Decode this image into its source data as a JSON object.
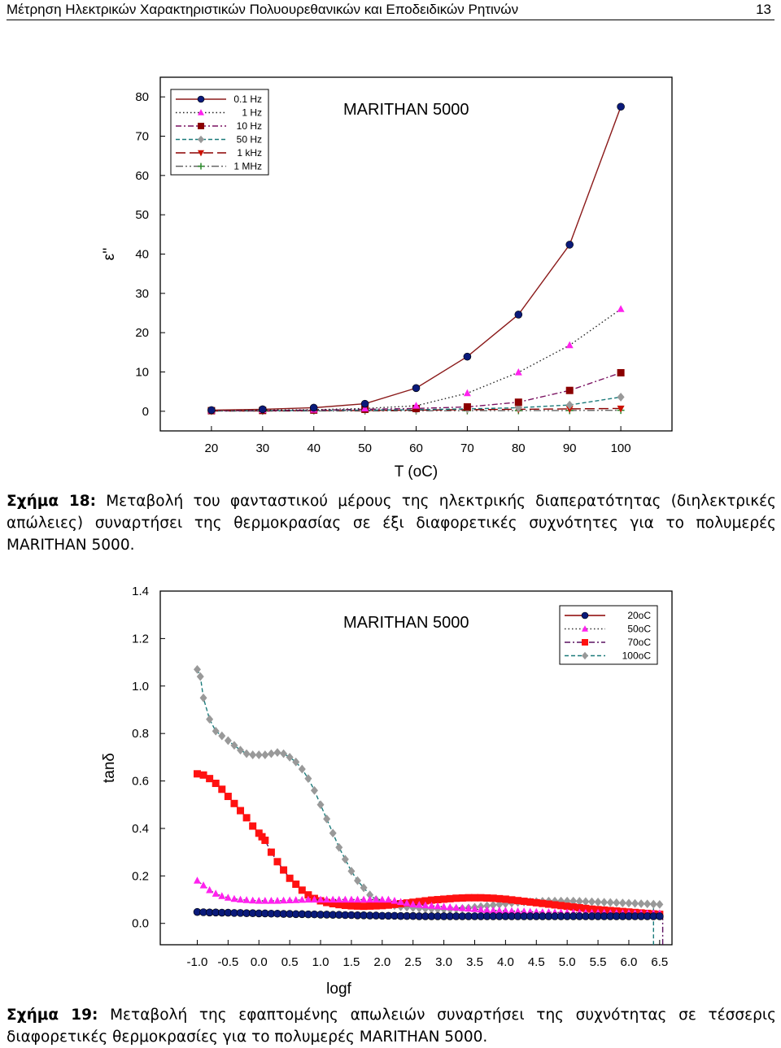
{
  "header": {
    "title": "Μέτρηση Ηλεκτρικών Χαρακτηριστικών Πολυουρεθανικών και Εποδειδικών Ρητινών",
    "page_number": "13"
  },
  "figure18": {
    "caption_label": "Σχήμα 18:",
    "caption_text": " Μεταβολή του φανταστικού μέρους της ηλεκτρικής διαπερατότητας (διηλεκτρικές απώλειες) συναρτήσει της θερμοκρασίας σε έξι διαφορετικές συχνότητες για το πολυμερές MARITHAN 5000."
  },
  "figure19": {
    "caption_label": "Σχήμα 19:",
    "caption_text": " Μεταβολή της εφαπτομένης απωλειών συναρτήσει της συχνότητας σε τέσσερις διαφορετικές θερμοκρασίες για το πολυμερές MARITHAN 5000."
  },
  "chart_data": [
    {
      "type": "line",
      "title": "MARITHAN 5000",
      "xlabel": "T (oC)",
      "ylabel": "ε''",
      "xlim": [
        10,
        110
      ],
      "ylim": [
        -5,
        85
      ],
      "xticks": [
        20,
        30,
        40,
        50,
        60,
        70,
        80,
        90,
        100
      ],
      "yticks": [
        0,
        10,
        20,
        30,
        40,
        50,
        60,
        70,
        80
      ],
      "legend": "top-left",
      "x": [
        20,
        30,
        40,
        50,
        60,
        70,
        80,
        90,
        100
      ],
      "series": [
        {
          "name": "0.1 Hz",
          "color": "#8b1a1a",
          "marker_color": "#0a1a7a",
          "marker": "circle",
          "dash": "solid",
          "values": [
            0.3,
            0.5,
            0.9,
            1.9,
            5.9,
            13.9,
            24.6,
            42.4,
            77.5
          ]
        },
        {
          "name": "1 Hz",
          "color": "#222222",
          "marker_color": "#ff22ee",
          "marker": "triangle",
          "dash": "dot",
          "values": [
            0.2,
            0.3,
            0.4,
            0.7,
            1.4,
            4.6,
            9.9,
            16.8,
            26.0
          ]
        },
        {
          "name": "10 Hz",
          "color": "#7a1060",
          "marker_color": "#8b0000",
          "marker": "square",
          "dash": "dashdot",
          "values": [
            0.15,
            0.2,
            0.3,
            0.5,
            0.7,
            1.1,
            2.3,
            5.3,
            9.8
          ]
        },
        {
          "name": "50 Hz",
          "color": "#1a7a7a",
          "marker_color": "#999999",
          "marker": "diamond",
          "dash": "dash",
          "values": [
            0.1,
            0.15,
            0.2,
            0.3,
            0.4,
            0.6,
            0.9,
            1.6,
            3.6
          ]
        },
        {
          "name": "1 kHz",
          "color": "#8b0000",
          "marker_color": "#cc1100",
          "marker": "invtriangle",
          "dash": "longdash",
          "values": [
            0.1,
            0.1,
            0.15,
            0.2,
            0.3,
            0.4,
            0.5,
            0.6,
            0.7
          ]
        },
        {
          "name": "1 MHz",
          "color": "#666666",
          "marker_color": "#2a8a2a",
          "marker": "plus",
          "dash": "dashdotdot",
          "values": [
            0.05,
            0.05,
            0.08,
            0.1,
            0.12,
            0.15,
            0.18,
            0.2,
            0.25
          ]
        }
      ]
    },
    {
      "type": "line",
      "title": "MARITHAN 5000",
      "xlabel": "logf",
      "ylabel": "tanδ",
      "xlim": [
        -1.6,
        6.7
      ],
      "ylim": [
        -0.09,
        1.4
      ],
      "xticks": [
        "-1.0",
        "-0.5",
        "0.0",
        "0.5",
        "1.0",
        "1.5",
        "2.0",
        "2.5",
        "3.0",
        "3.5",
        "4.0",
        "4.5",
        "5.0",
        "5.5",
        "6.0",
        "6.5"
      ],
      "yticks": [
        "0.0",
        "0.2",
        "0.4",
        "0.6",
        "0.8",
        "1.0",
        "1.2",
        "1.4"
      ],
      "legend": "top-right",
      "series": [
        {
          "name": "20oC",
          "color": "#8b0000",
          "marker_color": "#0a1a7a",
          "marker": "circle",
          "dash": "solid",
          "x": [
            -1.0,
            -0.9,
            -0.8,
            -0.7,
            -0.6,
            -0.5,
            -0.4,
            -0.3,
            -0.2,
            -0.1,
            0.0,
            0.1,
            0.2,
            0.3,
            0.4,
            0.5,
            0.6,
            0.7,
            0.8,
            0.9,
            1.0,
            1.1,
            1.2,
            1.3,
            1.4,
            1.5,
            1.6,
            1.7,
            1.8,
            1.9,
            2.0,
            2.1,
            2.2,
            2.3,
            2.4,
            2.5,
            2.6,
            2.7,
            2.8,
            2.9,
            3.0,
            3.1,
            3.2,
            3.3,
            3.4,
            3.5,
            3.6,
            3.7,
            3.8,
            3.9,
            4.0,
            4.1,
            4.2,
            4.3,
            4.4,
            4.5,
            4.6,
            4.7,
            4.8,
            4.9,
            5.0,
            5.1,
            5.2,
            5.3,
            5.4,
            5.5,
            5.6,
            5.7,
            5.8,
            5.9,
            6.0,
            6.1,
            6.2,
            6.3,
            6.4,
            6.5
          ],
          "values": [
            0.048,
            0.047,
            0.046,
            0.046,
            0.045,
            0.045,
            0.044,
            0.044,
            0.043,
            0.043,
            0.042,
            0.042,
            0.041,
            0.041,
            0.04,
            0.04,
            0.039,
            0.039,
            0.038,
            0.038,
            0.037,
            0.037,
            0.036,
            0.036,
            0.035,
            0.035,
            0.034,
            0.034,
            0.033,
            0.033,
            0.032,
            0.032,
            0.032,
            0.031,
            0.031,
            0.031,
            0.03,
            0.03,
            0.03,
            0.03,
            0.03,
            0.03,
            0.03,
            0.03,
            0.03,
            0.03,
            0.03,
            0.03,
            0.03,
            0.03,
            0.03,
            0.03,
            0.03,
            0.03,
            0.03,
            0.03,
            0.03,
            0.03,
            0.03,
            0.03,
            0.03,
            0.03,
            0.03,
            0.03,
            0.03,
            0.03,
            0.03,
            0.03,
            0.03,
            0.03,
            0.03,
            0.03,
            0.03,
            0.03,
            0.03,
            0.03
          ]
        },
        {
          "name": "50oC",
          "color": "#333333",
          "marker_color": "#ff22ee",
          "marker": "triangle",
          "dash": "dot",
          "x": [
            -1.0,
            -0.9,
            -0.8,
            -0.7,
            -0.6,
            -0.5,
            -0.4,
            -0.3,
            -0.2,
            -0.1,
            0.0,
            0.1,
            0.2,
            0.3,
            0.4,
            0.5,
            0.6,
            0.7,
            0.8,
            0.9,
            1.0,
            1.1,
            1.2,
            1.3,
            1.4,
            1.5,
            1.6,
            1.7,
            1.8,
            1.9,
            2.0,
            2.1,
            2.2,
            2.3,
            2.4,
            2.5,
            2.6,
            2.7,
            2.8,
            2.9,
            3.0,
            3.1,
            3.2,
            3.3,
            3.4,
            3.5,
            3.6,
            3.7,
            3.8,
            3.9,
            4.0,
            4.1,
            4.2,
            4.3,
            4.4,
            4.5,
            4.6,
            4.7,
            4.8,
            4.9,
            5.0,
            5.1,
            5.2,
            5.3,
            5.4,
            5.5,
            5.6,
            5.7,
            5.8,
            5.9,
            6.0,
            6.1,
            6.2,
            6.3,
            6.4,
            6.5
          ],
          "values": [
            0.18,
            0.16,
            0.14,
            0.125,
            0.115,
            0.108,
            0.103,
            0.1,
            0.098,
            0.096,
            0.095,
            0.095,
            0.095,
            0.095,
            0.096,
            0.097,
            0.098,
            0.099,
            0.1,
            0.1,
            0.1,
            0.1,
            0.1,
            0.1,
            0.1,
            0.1,
            0.1,
            0.1,
            0.1,
            0.1,
            0.1,
            0.1,
            0.095,
            0.09,
            0.085,
            0.08,
            0.078,
            0.076,
            0.074,
            0.072,
            0.07,
            0.068,
            0.066,
            0.064,
            0.062,
            0.06,
            0.058,
            0.056,
            0.055,
            0.054,
            0.053,
            0.052,
            0.051,
            0.05,
            0.049,
            0.048,
            0.047,
            0.047,
            0.046,
            0.046,
            0.045,
            0.045,
            0.045,
            0.044,
            0.044,
            0.044,
            0.044,
            0.043,
            0.043,
            0.043,
            0.043,
            0.042,
            0.042,
            0.042,
            0.042,
            0.042
          ]
        },
        {
          "name": "70oC",
          "color": "#5a1060",
          "marker_color": "#ff1111",
          "marker": "square",
          "dash": "dashdot",
          "x": [
            -1.0,
            -0.9,
            -0.8,
            -0.7,
            -0.6,
            -0.5,
            -0.4,
            -0.3,
            -0.2,
            -0.1,
            0.0,
            0.05,
            0.1,
            0.2,
            0.3,
            0.4,
            0.5,
            0.6,
            0.7,
            0.8,
            0.9,
            1.0,
            1.1,
            1.2,
            1.3,
            1.4,
            1.5,
            1.6,
            1.7,
            1.8,
            1.9,
            2.0,
            2.1,
            2.2,
            2.3,
            2.4,
            2.5,
            2.6,
            2.7,
            2.8,
            2.9,
            3.0,
            3.1,
            3.2,
            3.3,
            3.4,
            3.5,
            3.6,
            3.7,
            3.8,
            3.9,
            4.0,
            4.1,
            4.2,
            4.3,
            4.4,
            4.5,
            4.6,
            4.7,
            4.8,
            4.9,
            5.0,
            5.1,
            5.2,
            5.3,
            5.4,
            5.5,
            5.6,
            5.7,
            5.8,
            5.9,
            6.0,
            6.1,
            6.2,
            6.3,
            6.4,
            6.5
          ],
          "values": [
            0.63,
            0.625,
            0.61,
            0.59,
            0.565,
            0.535,
            0.505,
            0.475,
            0.445,
            0.41,
            0.38,
            0.365,
            0.35,
            0.3,
            0.26,
            0.225,
            0.19,
            0.165,
            0.14,
            0.12,
            0.105,
            0.095,
            0.088,
            0.083,
            0.079,
            0.076,
            0.074,
            0.073,
            0.072,
            0.073,
            0.074,
            0.075,
            0.077,
            0.08,
            0.083,
            0.086,
            0.089,
            0.092,
            0.095,
            0.098,
            0.1,
            0.102,
            0.104,
            0.106,
            0.107,
            0.108,
            0.108,
            0.108,
            0.107,
            0.106,
            0.104,
            0.102,
            0.099,
            0.096,
            0.093,
            0.09,
            0.087,
            0.084,
            0.081,
            0.078,
            0.075,
            0.072,
            0.069,
            0.066,
            0.063,
            0.06,
            0.058,
            0.056,
            0.054,
            0.052,
            0.05,
            0.048,
            0.046,
            0.044,
            0.042,
            0.04,
            0.038
          ]
        },
        {
          "name": "100oC",
          "color": "#1a7a7a",
          "marker_color": "#999999",
          "marker": "diamond",
          "dash": "dash",
          "x": [
            -1.0,
            -0.95,
            -0.9,
            -0.8,
            -0.7,
            -0.6,
            -0.5,
            -0.4,
            -0.3,
            -0.2,
            -0.1,
            0.0,
            0.1,
            0.2,
            0.3,
            0.4,
            0.5,
            0.6,
            0.7,
            0.8,
            0.9,
            1.0,
            1.1,
            1.2,
            1.3,
            1.4,
            1.5,
            1.6,
            1.7,
            1.8,
            1.9,
            2.0,
            2.1,
            2.2,
            2.3,
            2.4,
            2.5,
            2.6,
            2.7,
            2.8,
            2.9,
            3.0,
            3.1,
            3.2,
            3.3,
            3.4,
            3.5,
            3.6,
            3.7,
            3.8,
            3.9,
            4.0,
            4.1,
            4.2,
            4.3,
            4.4,
            4.5,
            4.6,
            4.7,
            4.8,
            4.9,
            5.0,
            5.1,
            5.2,
            5.3,
            5.4,
            5.5,
            5.6,
            5.7,
            5.8,
            5.9,
            6.0,
            6.1,
            6.2,
            6.3,
            6.4,
            6.5
          ],
          "values": [
            1.07,
            1.04,
            0.95,
            0.86,
            0.81,
            0.79,
            0.77,
            0.75,
            0.73,
            0.715,
            0.71,
            0.71,
            0.71,
            0.715,
            0.72,
            0.715,
            0.7,
            0.68,
            0.65,
            0.61,
            0.56,
            0.5,
            0.44,
            0.38,
            0.32,
            0.27,
            0.22,
            0.18,
            0.15,
            0.12,
            0.1,
            0.09,
            0.08,
            0.075,
            0.07,
            0.068,
            0.066,
            0.064,
            0.062,
            0.061,
            0.06,
            0.06,
            0.06,
            0.061,
            0.063,
            0.065,
            0.068,
            0.071,
            0.074,
            0.077,
            0.08,
            0.083,
            0.086,
            0.088,
            0.09,
            0.091,
            0.092,
            0.093,
            0.094,
            0.094,
            0.094,
            0.094,
            0.094,
            0.093,
            0.092,
            0.091,
            0.09,
            0.089,
            0.088,
            0.087,
            0.086,
            0.085,
            0.084,
            0.083,
            0.082,
            0.081,
            0.08
          ]
        }
      ]
    }
  ]
}
